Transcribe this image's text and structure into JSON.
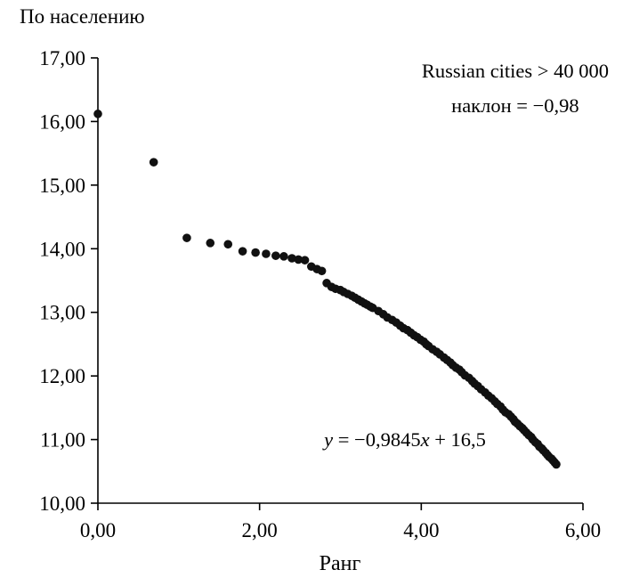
{
  "chart_data": {
    "type": "scatter",
    "title": "По населению",
    "xlabel": "Ранг",
    "xlim": [
      0,
      6
    ],
    "ylim": [
      10,
      17
    ],
    "grid": false,
    "legend": "none",
    "axis_color": "#000000",
    "marker": {
      "color": "#111111",
      "radius": 4.8
    },
    "xticks": [
      {
        "v": 0,
        "label": "0,00"
      },
      {
        "v": 2,
        "label": "2,00"
      },
      {
        "v": 4,
        "label": "4,00"
      },
      {
        "v": 6,
        "label": "6,00"
      }
    ],
    "yticks": [
      {
        "v": 17,
        "label": "17,00"
      },
      {
        "v": 16,
        "label": "16,00"
      },
      {
        "v": 15,
        "label": "15,00"
      },
      {
        "v": 14,
        "label": "14,00"
      },
      {
        "v": 13,
        "label": "13,00"
      },
      {
        "v": 12,
        "label": "12,00"
      },
      {
        "v": 11,
        "label": "11,00"
      },
      {
        "v": 10,
        "label": "10,00"
      }
    ],
    "annotations": [
      {
        "id": "series-note",
        "text": "Russian cities > 40 000"
      },
      {
        "id": "slope-note",
        "text": "наклон = −0,98"
      }
    ],
    "equation": {
      "lhs": "y",
      "mid": " = −0,9845",
      "xvar": "x",
      "tail": " + 16,5"
    },
    "points": [
      [
        0.0,
        16.12
      ],
      [
        0.69,
        15.36
      ],
      [
        1.1,
        14.17
      ],
      [
        1.39,
        14.09
      ],
      [
        1.61,
        14.07
      ],
      [
        1.79,
        13.96
      ],
      [
        1.95,
        13.94
      ],
      [
        2.08,
        13.92
      ],
      [
        2.2,
        13.89
      ],
      [
        2.3,
        13.88
      ],
      [
        2.4,
        13.85
      ],
      [
        2.48,
        13.83
      ],
      [
        2.56,
        13.82
      ],
      [
        2.64,
        13.72
      ],
      [
        2.71,
        13.68
      ],
      [
        2.77,
        13.65
      ],
      [
        2.83,
        13.46
      ],
      [
        2.89,
        13.4
      ],
      [
        2.94,
        13.37
      ],
      [
        3.0,
        13.35
      ],
      [
        3.04,
        13.32
      ],
      [
        3.09,
        13.29
      ],
      [
        3.14,
        13.26
      ],
      [
        3.18,
        13.23
      ],
      [
        3.22,
        13.2
      ],
      [
        3.26,
        13.17
      ],
      [
        3.3,
        13.14
      ],
      [
        3.33,
        13.12
      ],
      [
        3.37,
        13.09
      ],
      [
        3.4,
        13.07
      ],
      [
        3.47,
        13.02
      ],
      [
        3.53,
        12.97
      ],
      [
        3.58,
        12.92
      ],
      [
        3.64,
        12.88
      ],
      [
        3.69,
        12.84
      ],
      [
        3.74,
        12.79
      ],
      [
        3.78,
        12.75
      ],
      [
        3.83,
        12.72
      ],
      [
        3.87,
        12.68
      ],
      [
        3.91,
        12.64
      ],
      [
        3.95,
        12.61
      ],
      [
        3.99,
        12.57
      ],
      [
        4.03,
        12.54
      ],
      [
        4.06,
        12.5
      ],
      [
        4.09,
        12.47
      ],
      [
        4.14,
        12.42
      ],
      [
        4.19,
        12.38
      ],
      [
        4.23,
        12.34
      ],
      [
        4.28,
        12.29
      ],
      [
        4.32,
        12.25
      ],
      [
        4.36,
        12.21
      ],
      [
        4.39,
        12.17
      ],
      [
        4.43,
        12.13
      ],
      [
        4.47,
        12.1
      ],
      [
        4.5,
        12.06
      ],
      [
        4.54,
        12.01
      ],
      [
        4.59,
        11.97
      ],
      [
        4.63,
        11.92
      ],
      [
        4.66,
        11.88
      ],
      [
        4.7,
        11.84
      ],
      [
        4.74,
        11.79
      ],
      [
        4.79,
        11.74
      ],
      [
        4.83,
        11.69
      ],
      [
        4.87,
        11.65
      ],
      [
        4.91,
        11.6
      ],
      [
        4.94,
        11.56
      ],
      [
        4.98,
        11.52
      ],
      [
        5.01,
        11.47
      ],
      [
        5.04,
        11.43
      ],
      [
        5.08,
        11.4
      ],
      [
        5.11,
        11.36
      ],
      [
        5.14,
        11.32
      ],
      [
        5.16,
        11.28
      ],
      [
        5.19,
        11.25
      ],
      [
        5.22,
        11.21
      ],
      [
        5.25,
        11.18
      ],
      [
        5.27,
        11.15
      ],
      [
        5.3,
        11.11
      ],
      [
        5.33,
        11.07
      ],
      [
        5.36,
        11.04
      ],
      [
        5.38,
        11.0
      ],
      [
        5.41,
        10.96
      ],
      [
        5.44,
        10.93
      ],
      [
        5.46,
        10.89
      ],
      [
        5.49,
        10.86
      ],
      [
        5.51,
        10.83
      ],
      [
        5.54,
        10.79
      ],
      [
        5.56,
        10.76
      ],
      [
        5.58,
        10.73
      ],
      [
        5.61,
        10.7
      ],
      [
        5.63,
        10.67
      ],
      [
        5.65,
        10.64
      ],
      [
        5.67,
        10.61
      ]
    ]
  }
}
